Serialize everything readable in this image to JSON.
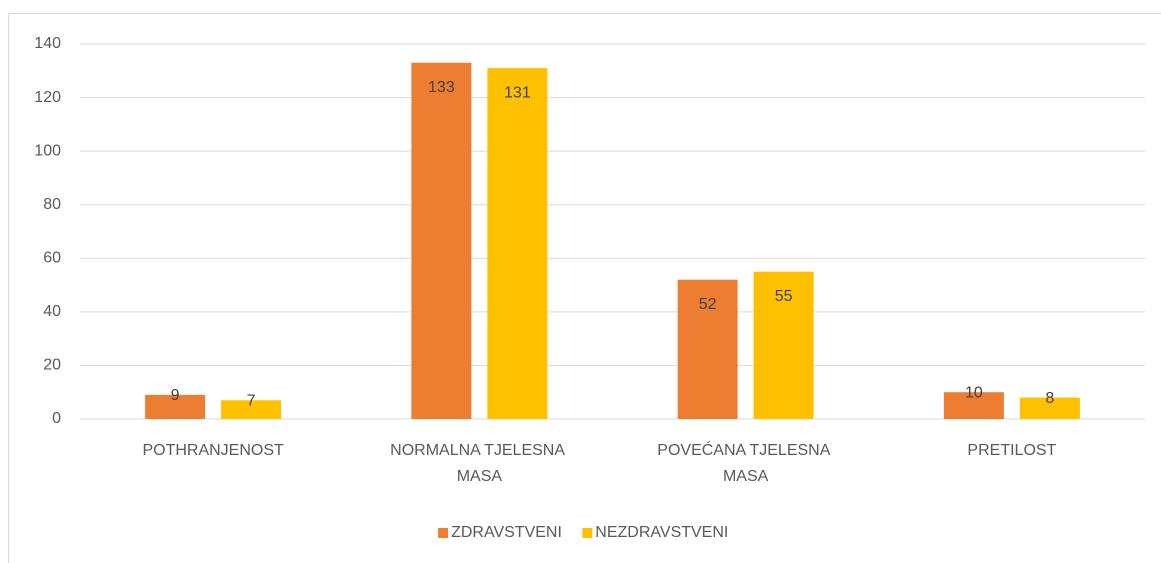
{
  "chart_data": {
    "type": "bar",
    "categories": [
      "POTHRANJENOST",
      "NORMALNA TJELESNA MASA",
      "POVEĆANA TJELESNA MASA",
      "PRETILOST"
    ],
    "series": [
      {
        "name": "ZDRAVSTVENI",
        "color": "#ed7d31",
        "values": [
          9,
          133,
          52,
          10
        ]
      },
      {
        "name": "NEZDRAVSTVENI",
        "color": "#ffc000",
        "values": [
          7,
          131,
          55,
          8
        ]
      }
    ],
    "ylim": [
      0,
      140
    ],
    "yticks": [
      0,
      20,
      40,
      60,
      80,
      100,
      120,
      140
    ],
    "grid": true,
    "legend": "bottom"
  }
}
